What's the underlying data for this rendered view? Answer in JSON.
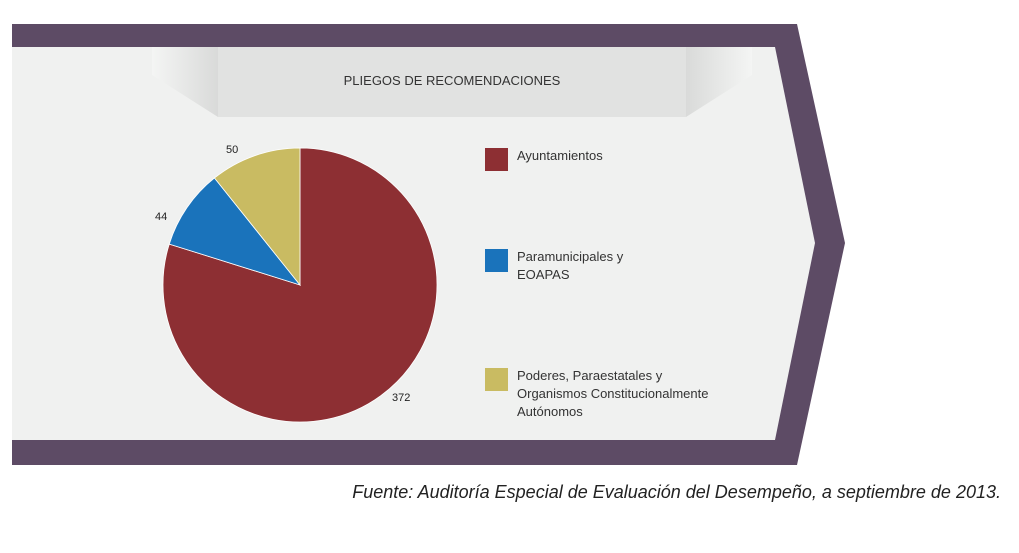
{
  "chart_data": {
    "type": "pie",
    "title": "PLIEGOS DE RECOMENDACIONES",
    "slices": [
      {
        "name": "Ayuntamientos",
        "value": 372,
        "label": "372",
        "color": "#8d2f33"
      },
      {
        "name": "Paramunicipales y\nEOAPAS",
        "value": 44,
        "label": "44",
        "color": "#1a73bb"
      },
      {
        "name": "Poderes, Paraestatales y\nOrganismos Constitucionalmente\nAutónomos",
        "value": 50,
        "label": "50",
        "color": "#c9bb62"
      }
    ],
    "legend_position": "right"
  },
  "source": "Fuente: Auditoría Especial de Evaluación del Desempeño, a septiembre de 2013.",
  "colors": {
    "frame": "#5d4b65",
    "panel": "#f0f1f0",
    "title_band": "#e1e2e1"
  }
}
